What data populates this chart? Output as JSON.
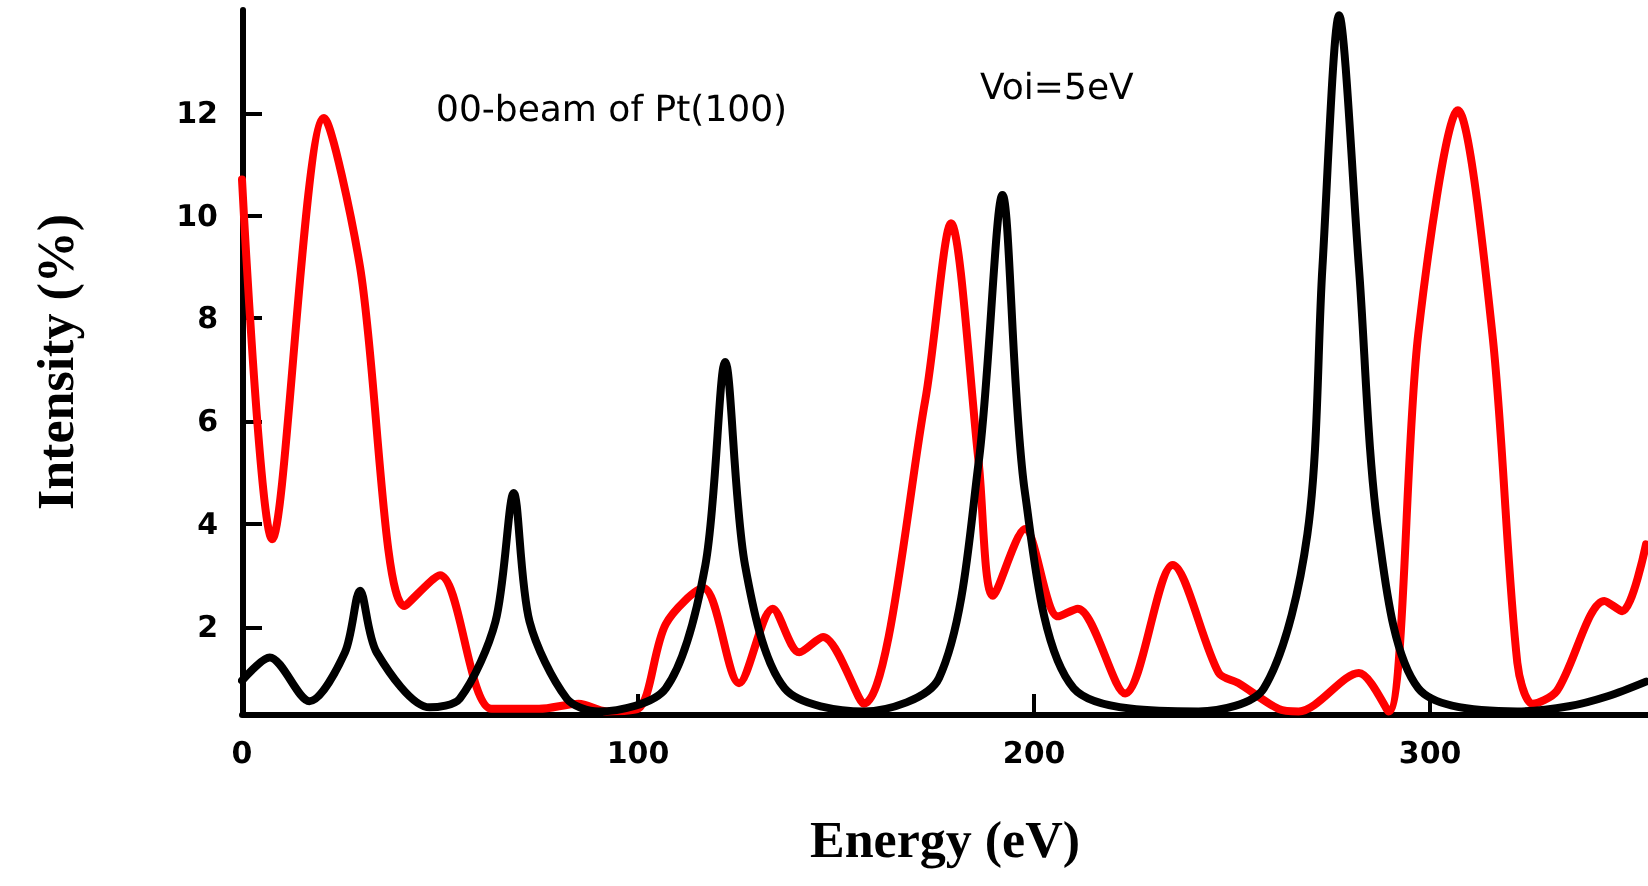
{
  "chart_data": {
    "type": "line",
    "xlabel": "Energy (eV)",
    "ylabel": "Intensity (%)",
    "annotations": [
      "00-beam of Pt(100)",
      "Voi=5eV"
    ],
    "xlim": [
      0,
      355
    ],
    "ylim": [
      0.3,
      14
    ],
    "xticks": [
      0,
      100,
      200,
      300
    ],
    "yticks": [
      2,
      4,
      6,
      8,
      10,
      12
    ],
    "grid": false,
    "marker": "none",
    "line_style": "solid",
    "series": [
      {
        "color": "#ff0000",
        "x": [
          0,
          7.6,
          20.7,
          29.8,
          41,
          50,
          63,
          75,
          85,
          92,
          100,
          107,
          116.5,
          125.5,
          134,
          140.7,
          146.7,
          157,
          172.5,
          179,
          186,
          189.6,
          197.7,
          206,
          211,
          223,
          235,
          246.6,
          251.6,
          261.7,
          266.8,
          282,
          289.5,
          297,
          307,
          315.7,
          322,
          325.8,
          332,
          344,
          348.5,
          354.5
        ],
        "values": [
          10.7,
          3.7,
          11.9,
          9.0,
          2.4,
          3.0,
          0.4,
          0.4,
          0.5,
          0.35,
          0.4,
          2.05,
          2.75,
          0.9,
          2.35,
          1.5,
          1.8,
          0.5,
          6.4,
          9.85,
          5.2,
          2.6,
          3.9,
          2.2,
          2.35,
          0.7,
          3.2,
          1.1,
          0.9,
          0.4,
          0.35,
          1.1,
          0.35,
          7.7,
          12.05,
          7.7,
          1.3,
          0.5,
          0.75,
          2.5,
          2.3,
          3.6
        ]
      },
      {
        "color": "#000000",
        "x": [
          0,
          7,
          17,
          26,
          29.8,
          34,
          47.4,
          55,
          64,
          68.6,
          72.6,
          82,
          90,
          107,
          117,
          122,
          127,
          137,
          157,
          176,
          186,
          192,
          197.7,
          210,
          241.5,
          258,
          269,
          272.8,
          277,
          282,
          287,
          297,
          322,
          335,
          345,
          354.5
        ],
        "values": [
          0.95,
          1.4,
          0.55,
          1.5,
          2.7,
          1.5,
          0.43,
          0.6,
          2.1,
          4.6,
          2.1,
          0.6,
          0.35,
          0.8,
          3.2,
          7.15,
          3.2,
          0.8,
          0.35,
          1.0,
          5.2,
          10.4,
          4.6,
          0.8,
          0.35,
          0.8,
          3.8,
          9.0,
          13.9,
          9.0,
          3.8,
          0.8,
          0.35,
          0.45,
          0.65,
          0.93
        ]
      }
    ]
  }
}
